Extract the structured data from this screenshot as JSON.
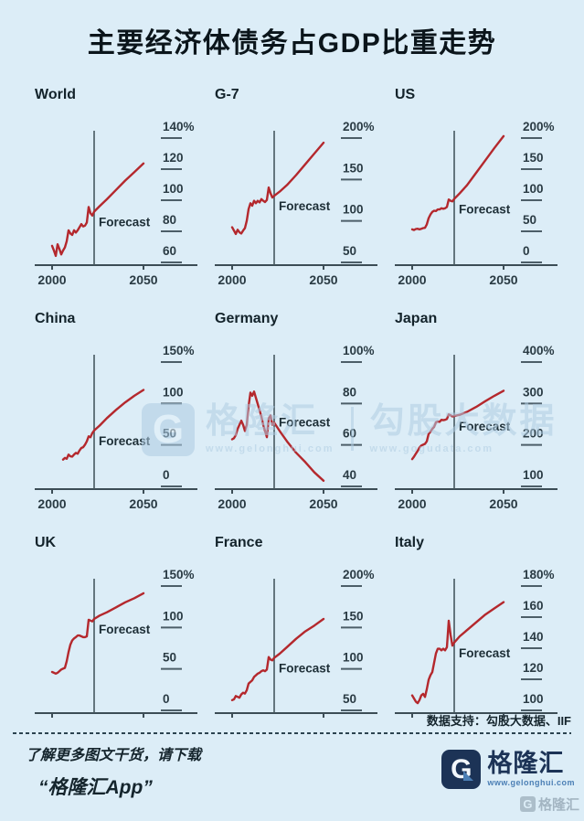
{
  "header": {
    "title": "主要经济体债务占GDP比重走势"
  },
  "source": {
    "label": "数据支持：勾股大数据、IIF"
  },
  "footer": {
    "line1": "了解更多图文干货，请下载",
    "line2": "“格隆汇App”",
    "logo_g": "G",
    "logo_text": "格隆汇",
    "logo_url": "www.gelonghui.com",
    "corner_g": "G",
    "corner_watermark": "格隆汇"
  },
  "watermark": {
    "g": "G",
    "brand": "格隆汇",
    "brand_url": "www.gelonghui.com",
    "partner": "勾股大数据",
    "partner_url": "www.gogudata.com"
  },
  "colors": {
    "background": "#dcedf7",
    "line": "#b4282d",
    "axis": "#3c4d56",
    "tick": "#4c5e68",
    "label": "#2a3b44",
    "forecast_line": "#46585f",
    "forecast_text": "#1d2e36"
  },
  "chart_data": [
    {
      "type": "line",
      "name": "World",
      "y_tick_labels": [
        "140%",
        "120",
        "100",
        "80",
        "60"
      ],
      "y_tick_values": [
        140,
        120,
        100,
        80,
        60
      ],
      "x_tick_labels": [
        "2000",
        "2050"
      ],
      "x_tick_values": [
        2000,
        2050
      ],
      "show_x_labels": true,
      "forecast_year": 2023,
      "forecast_label": "Forecast",
      "xlim": [
        2000,
        2050
      ],
      "series": [
        [
          2000,
          63
        ],
        [
          2001,
          60
        ],
        [
          2002,
          56.5
        ],
        [
          2003,
          64
        ],
        [
          2004,
          61
        ],
        [
          2005,
          57.5
        ],
        [
          2006,
          60
        ],
        [
          2007,
          62
        ],
        [
          2008,
          66
        ],
        [
          2009,
          73
        ],
        [
          2010,
          71
        ],
        [
          2011,
          70
        ],
        [
          2012,
          73
        ],
        [
          2013,
          71.5
        ],
        [
          2014,
          73
        ],
        [
          2015,
          75
        ],
        [
          2016,
          77
        ],
        [
          2017,
          75.5
        ],
        [
          2018,
          76
        ],
        [
          2019,
          78
        ],
        [
          2020,
          88
        ],
        [
          2021,
          84
        ],
        [
          2022,
          82.5
        ],
        [
          2023,
          85
        ],
        [
          2026,
          88.5
        ],
        [
          2030,
          93
        ],
        [
          2035,
          99
        ],
        [
          2040,
          105
        ],
        [
          2045,
          110.5
        ],
        [
          2050,
          116
        ]
      ]
    },
    {
      "type": "line",
      "name": "G-7",
      "y_tick_labels": [
        "200%",
        "150",
        "100",
        "50"
      ],
      "y_tick_values": [
        200,
        150,
        100,
        50
      ],
      "x_tick_labels": [
        "2000",
        "2050"
      ],
      "x_tick_values": [
        2000,
        2050
      ],
      "show_x_labels": true,
      "forecast_year": 2023,
      "forecast_label": "Forecast",
      "xlim": [
        2000,
        2050
      ],
      "series": [
        [
          2000,
          78
        ],
        [
          2001,
          74
        ],
        [
          2002,
          70
        ],
        [
          2003,
          75
        ],
        [
          2004,
          72
        ],
        [
          2005,
          70.5
        ],
        [
          2006,
          74
        ],
        [
          2007,
          77
        ],
        [
          2008,
          86
        ],
        [
          2009,
          100
        ],
        [
          2010,
          107
        ],
        [
          2011,
          104
        ],
        [
          2012,
          110
        ],
        [
          2013,
          107
        ],
        [
          2014,
          110
        ],
        [
          2015,
          108
        ],
        [
          2016,
          112
        ],
        [
          2017,
          110
        ],
        [
          2018,
          108.5
        ],
        [
          2019,
          111
        ],
        [
          2020,
          126
        ],
        [
          2021,
          119
        ],
        [
          2022,
          114
        ],
        [
          2023,
          116
        ],
        [
          2026,
          121
        ],
        [
          2030,
          129
        ],
        [
          2035,
          141
        ],
        [
          2040,
          154
        ],
        [
          2045,
          167
        ],
        [
          2050,
          180
        ]
      ]
    },
    {
      "type": "line",
      "name": "US",
      "y_tick_labels": [
        "200%",
        "150",
        "100",
        "50",
        "0"
      ],
      "y_tick_values": [
        200,
        150,
        100,
        50,
        0
      ],
      "x_tick_labels": [
        "2000",
        "2050"
      ],
      "x_tick_values": [
        2000,
        2050
      ],
      "show_x_labels": true,
      "forecast_year": 2023,
      "forecast_label": "Forecast",
      "xlim": [
        2000,
        2050
      ],
      "series": [
        [
          2000,
          34
        ],
        [
          2001,
          33
        ],
        [
          2002,
          34.5
        ],
        [
          2003,
          35
        ],
        [
          2004,
          34
        ],
        [
          2005,
          35
        ],
        [
          2006,
          36
        ],
        [
          2007,
          36.5
        ],
        [
          2008,
          42
        ],
        [
          2009,
          52
        ],
        [
          2010,
          58
        ],
        [
          2011,
          62
        ],
        [
          2012,
          64
        ],
        [
          2013,
          63.5
        ],
        [
          2014,
          66
        ],
        [
          2015,
          66
        ],
        [
          2016,
          68
        ],
        [
          2017,
          67
        ],
        [
          2018,
          68
        ],
        [
          2019,
          70
        ],
        [
          2020,
          82
        ],
        [
          2021,
          80
        ],
        [
          2022,
          79
        ],
        [
          2023,
          83
        ],
        [
          2026,
          92
        ],
        [
          2030,
          105
        ],
        [
          2035,
          125
        ],
        [
          2040,
          145
        ],
        [
          2045,
          165
        ],
        [
          2050,
          184
        ]
      ]
    },
    {
      "type": "line",
      "name": "China",
      "y_tick_labels": [
        "150%",
        "100",
        "50",
        "0"
      ],
      "y_tick_values": [
        150,
        100,
        50,
        0
      ],
      "x_tick_labels": [
        "2000",
        "2050"
      ],
      "x_tick_values": [
        2000,
        2050
      ],
      "show_x_labels": true,
      "forecast_year": 2023,
      "forecast_label": "Forecast",
      "xlim": [
        2000,
        2050
      ],
      "series": [
        [
          2006,
          18
        ],
        [
          2007,
          20
        ],
        [
          2008,
          19
        ],
        [
          2009,
          24
        ],
        [
          2010,
          22
        ],
        [
          2011,
          21.5
        ],
        [
          2012,
          24
        ],
        [
          2013,
          26
        ],
        [
          2014,
          25
        ],
        [
          2015,
          29
        ],
        [
          2016,
          32
        ],
        [
          2017,
          33
        ],
        [
          2018,
          36
        ],
        [
          2019,
          40
        ],
        [
          2020,
          46
        ],
        [
          2021,
          45
        ],
        [
          2022,
          50
        ],
        [
          2023,
          53
        ],
        [
          2026,
          59
        ],
        [
          2030,
          68
        ],
        [
          2035,
          78
        ],
        [
          2040,
          87
        ],
        [
          2045,
          95
        ],
        [
          2050,
          102
        ]
      ]
    },
    {
      "type": "line",
      "name": "Germany",
      "y_tick_labels": [
        "100%",
        "80",
        "60",
        "40"
      ],
      "y_tick_values": [
        100,
        80,
        60,
        40
      ],
      "x_tick_labels": [
        "2000",
        "2050"
      ],
      "x_tick_values": [
        2000,
        2050
      ],
      "show_x_labels": true,
      "forecast_year": 2023,
      "forecast_label": "Forecast",
      "xlim": [
        2000,
        2050
      ],
      "series": [
        [
          2000,
          57
        ],
        [
          2001,
          57.5
        ],
        [
          2002,
          59
        ],
        [
          2003,
          62
        ],
        [
          2004,
          64
        ],
        [
          2005,
          66
        ],
        [
          2006,
          64
        ],
        [
          2007,
          61
        ],
        [
          2008,
          64
        ],
        [
          2009,
          73
        ],
        [
          2010,
          79.5
        ],
        [
          2011,
          78
        ],
        [
          2012,
          80
        ],
        [
          2013,
          77
        ],
        [
          2014,
          74
        ],
        [
          2015,
          71
        ],
        [
          2016,
          68
        ],
        [
          2017,
          64
        ],
        [
          2018,
          61
        ],
        [
          2019,
          58
        ],
        [
          2020,
          67
        ],
        [
          2021,
          68.5
        ],
        [
          2022,
          64
        ],
        [
          2023,
          65
        ],
        [
          2026,
          61
        ],
        [
          2030,
          56
        ],
        [
          2035,
          50.5
        ],
        [
          2040,
          46
        ],
        [
          2045,
          41
        ],
        [
          2050,
          37
        ]
      ]
    },
    {
      "type": "line",
      "name": "Japan",
      "y_tick_labels": [
        "400%",
        "300",
        "200",
        "100"
      ],
      "y_tick_values": [
        400,
        300,
        200,
        100
      ],
      "x_tick_labels": [
        "2000",
        "2050"
      ],
      "x_tick_values": [
        2000,
        2050
      ],
      "show_x_labels": true,
      "forecast_year": 2023,
      "forecast_label": "Forecast",
      "xlim": [
        2000,
        2050
      ],
      "series": [
        [
          2000,
          137
        ],
        [
          2001,
          143
        ],
        [
          2002,
          150
        ],
        [
          2003,
          157
        ],
        [
          2004,
          165
        ],
        [
          2005,
          170
        ],
        [
          2006,
          172
        ],
        [
          2007,
          174
        ],
        [
          2008,
          180
        ],
        [
          2009,
          198
        ],
        [
          2010,
          203
        ],
        [
          2011,
          210
        ],
        [
          2012,
          215
        ],
        [
          2013,
          226
        ],
        [
          2014,
          228
        ],
        [
          2015,
          227
        ],
        [
          2016,
          232
        ],
        [
          2017,
          231
        ],
        [
          2018,
          232
        ],
        [
          2019,
          234
        ],
        [
          2020,
          245
        ],
        [
          2021,
          243
        ],
        [
          2022,
          240
        ],
        [
          2023,
          241
        ],
        [
          2026,
          244
        ],
        [
          2030,
          251
        ],
        [
          2035,
          263
        ],
        [
          2040,
          277
        ],
        [
          2045,
          290
        ],
        [
          2050,
          302
        ]
      ]
    },
    {
      "type": "line",
      "name": "UK",
      "y_tick_labels": [
        "150%",
        "100",
        "50",
        "0"
      ],
      "y_tick_values": [
        150,
        100,
        50,
        0
      ],
      "x_tick_labels": [],
      "x_tick_values": [
        2000,
        2050
      ],
      "show_x_labels": false,
      "forecast_year": 2023,
      "forecast_label": "Forecast",
      "xlim": [
        2000,
        2050
      ],
      "series": [
        [
          2000,
          32
        ],
        [
          2001,
          31
        ],
        [
          2002,
          30
        ],
        [
          2003,
          31
        ],
        [
          2004,
          33
        ],
        [
          2005,
          35
        ],
        [
          2006,
          36
        ],
        [
          2007,
          37
        ],
        [
          2008,
          45
        ],
        [
          2009,
          56
        ],
        [
          2010,
          65
        ],
        [
          2011,
          70
        ],
        [
          2012,
          72.5
        ],
        [
          2013,
          74
        ],
        [
          2014,
          76
        ],
        [
          2015,
          76
        ],
        [
          2016,
          75
        ],
        [
          2017,
          74
        ],
        [
          2018,
          74
        ],
        [
          2019,
          75
        ],
        [
          2020,
          95
        ],
        [
          2021,
          94
        ],
        [
          2022,
          93
        ],
        [
          2023,
          96
        ],
        [
          2026,
          100
        ],
        [
          2030,
          104
        ],
        [
          2035,
          110
        ],
        [
          2040,
          116
        ],
        [
          2045,
          121
        ],
        [
          2050,
          127
        ]
      ]
    },
    {
      "type": "line",
      "name": "France",
      "y_tick_labels": [
        "200%",
        "150",
        "100",
        "50"
      ],
      "y_tick_values": [
        200,
        150,
        100,
        50
      ],
      "x_tick_labels": [],
      "x_tick_values": [
        2000,
        2050
      ],
      "show_x_labels": false,
      "forecast_year": 2023,
      "forecast_label": "Forecast",
      "xlim": [
        2000,
        2050
      ],
      "series": [
        [
          2000,
          48
        ],
        [
          2001,
          49
        ],
        [
          2002,
          53
        ],
        [
          2003,
          52
        ],
        [
          2004,
          51
        ],
        [
          2005,
          55
        ],
        [
          2006,
          57
        ],
        [
          2007,
          56
        ],
        [
          2008,
          60
        ],
        [
          2009,
          68
        ],
        [
          2010,
          70
        ],
        [
          2011,
          72
        ],
        [
          2012,
          76
        ],
        [
          2013,
          78
        ],
        [
          2014,
          80
        ],
        [
          2015,
          81
        ],
        [
          2016,
          83
        ],
        [
          2017,
          84
        ],
        [
          2018,
          83
        ],
        [
          2019,
          85
        ],
        [
          2020,
          100
        ],
        [
          2021,
          97
        ],
        [
          2022,
          96
        ],
        [
          2023,
          99
        ],
        [
          2026,
          104
        ],
        [
          2030,
          112
        ],
        [
          2035,
          122
        ],
        [
          2040,
          131
        ],
        [
          2045,
          138
        ],
        [
          2050,
          146
        ]
      ]
    },
    {
      "type": "line",
      "name": "Italy",
      "y_tick_labels": [
        "180%",
        "160",
        "140",
        "120",
        "100"
      ],
      "y_tick_values": [
        180,
        160,
        140,
        120,
        100
      ],
      "x_tick_labels": [],
      "x_tick_values": [
        2000,
        2050
      ],
      "show_x_labels": false,
      "forecast_year": 2023,
      "forecast_label": "Forecast",
      "xlim": [
        2000,
        2050
      ],
      "series": [
        [
          2000,
          102
        ],
        [
          2001,
          100
        ],
        [
          2002,
          98
        ],
        [
          2003,
          97
        ],
        [
          2004,
          99
        ],
        [
          2005,
          102
        ],
        [
          2006,
          103
        ],
        [
          2007,
          101
        ],
        [
          2008,
          106
        ],
        [
          2009,
          112
        ],
        [
          2010,
          115
        ],
        [
          2011,
          117
        ],
        [
          2012,
          123
        ],
        [
          2013,
          129
        ],
        [
          2014,
          132
        ],
        [
          2015,
          132
        ],
        [
          2016,
          131
        ],
        [
          2017,
          132
        ],
        [
          2018,
          131
        ],
        [
          2019,
          133
        ],
        [
          2020,
          150
        ],
        [
          2021,
          141
        ],
        [
          2022,
          134
        ],
        [
          2023,
          136
        ],
        [
          2026,
          140
        ],
        [
          2030,
          144
        ],
        [
          2035,
          149
        ],
        [
          2040,
          154
        ],
        [
          2045,
          158
        ],
        [
          2050,
          162
        ]
      ]
    }
  ]
}
